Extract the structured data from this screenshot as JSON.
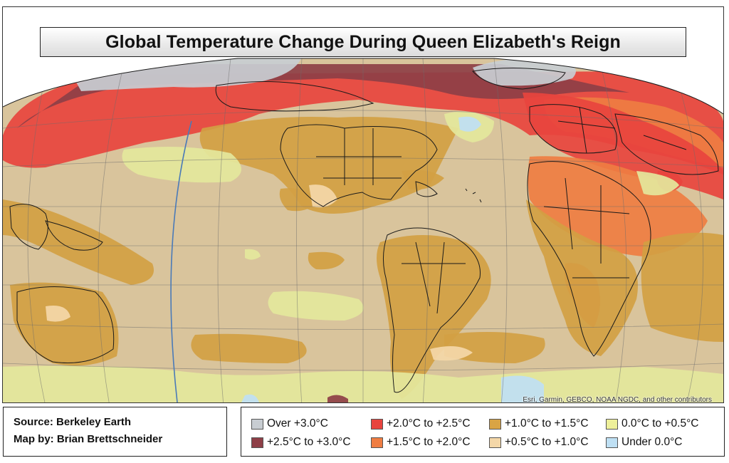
{
  "title": "Global Temperature Change During Queen Elizabeth's Reign",
  "attribution": "Esri, Garmin, GEBCO, NOAA NGDC, and other contributors",
  "credits": {
    "source": "Source: Berkeley Earth",
    "author": "Map by: Brian Brettschneider"
  },
  "legend": [
    {
      "label": "Over +3.0°C",
      "color": "#c8cdd2"
    },
    {
      "label": "+2.5°C to +3.0°C",
      "color": "#8e3f47"
    },
    {
      "label": "+2.0°C to +2.5°C",
      "color": "#e8443e"
    },
    {
      "label": "+1.5°C to +2.0°C",
      "color": "#ef7d42"
    },
    {
      "label": "+1.0°C to +1.5°C",
      "color": "#d9a444"
    },
    {
      "label": "+0.5°C to +1.0°C",
      "color": "#f4d7a8"
    },
    {
      "label": "0.0°C to +0.5°C",
      "color": "#eef09a"
    },
    {
      "label": "Under 0.0°C",
      "color": "#bfe0f4"
    }
  ],
  "colors": {
    "base": "#d9c49c",
    "over3": "#c8cdd2",
    "c25_30": "#8e3f47",
    "c20_25": "#e8443e",
    "c15_20": "#ef7d42",
    "c10_15": "#d3a043",
    "c05_10": "#f4d7a8",
    "c00_05": "#e4e79c",
    "under0": "#bfe0f4",
    "grid": "#6c6c6c",
    "dateline": "#4a7ab8",
    "border": "#1a1a1a"
  }
}
